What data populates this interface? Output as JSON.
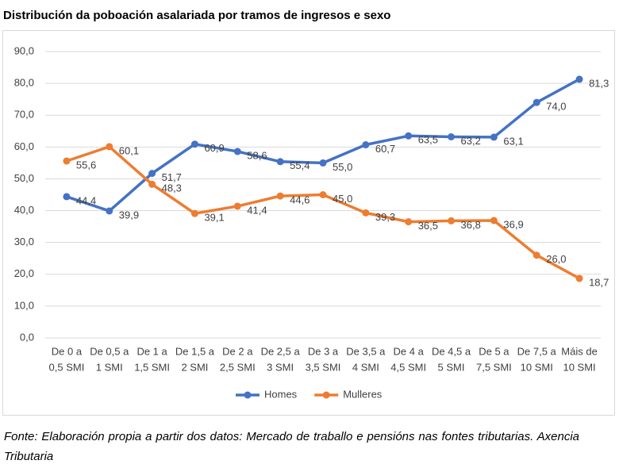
{
  "chart_data": {
    "type": "line",
    "title": "Distribución da poboación asalariada por tramos de ingresos e sexo",
    "categories": [
      [
        "De 0 a",
        "0,5 SMI"
      ],
      [
        "De 0,5 a",
        "1 SMI"
      ],
      [
        "De 1 a",
        "1,5 SMI"
      ],
      [
        "De 1,5 a",
        "2 SMI"
      ],
      [
        "De 2 a",
        "2,5 SMI"
      ],
      [
        "De 2,5 a",
        "3 SMI"
      ],
      [
        "De 3 a",
        "3,5 SMI"
      ],
      [
        "De 3,5 a",
        "4 SMI"
      ],
      [
        "De 4 a",
        "4,5 SMI"
      ],
      [
        "De 4,5 a",
        "5 SMI"
      ],
      [
        "De 5 a",
        "7,5 SMI"
      ],
      [
        "De 7,5 a",
        "10 SMI"
      ],
      [
        "Máis de",
        "10 SMI"
      ]
    ],
    "series": [
      {
        "name": "Homes",
        "color": "#4472c4",
        "values": [
          44.4,
          39.9,
          51.7,
          60.9,
          58.6,
          55.4,
          55.0,
          60.7,
          63.5,
          63.2,
          63.1,
          74.0,
          81.3
        ],
        "value_labels": [
          "44,4",
          "39,9",
          "51,7",
          "60,9",
          "58,6",
          "55,4",
          "55,0",
          "60,7",
          "63,5",
          "63,2",
          "63,1",
          "74,0",
          "81,3"
        ]
      },
      {
        "name": "Mulleres",
        "color": "#ed7d31",
        "values": [
          55.6,
          60.1,
          48.3,
          39.1,
          41.4,
          44.6,
          45.0,
          39.3,
          36.5,
          36.8,
          36.9,
          26.0,
          18.7
        ],
        "value_labels": [
          "55,6",
          "60,1",
          "48,3",
          "39,1",
          "41,4",
          "44,6",
          "45,0",
          "39,3",
          "36,5",
          "36,8",
          "36,9",
          "26,0",
          "18,7"
        ]
      }
    ],
    "ylim": [
      0,
      90
    ],
    "yticks": [
      {
        "value": 0,
        "label": "0,0"
      },
      {
        "value": 10,
        "label": "10,0"
      },
      {
        "value": 20,
        "label": "20,0"
      },
      {
        "value": 30,
        "label": "30,0"
      },
      {
        "value": 40,
        "label": "40,0"
      },
      {
        "value": 50,
        "label": "50,0"
      },
      {
        "value": 60,
        "label": "60,0"
      },
      {
        "value": 70,
        "label": "70,0"
      },
      {
        "value": 80,
        "label": "80,0"
      },
      {
        "value": 90,
        "label": "90,0"
      }
    ],
    "grid": true,
    "legend": "bottom",
    "source": "Fonte: Elaboración propia a partir dos datos: Mercado de traballo e pensións nas fontes tributarias. Axencia Tributaria"
  }
}
